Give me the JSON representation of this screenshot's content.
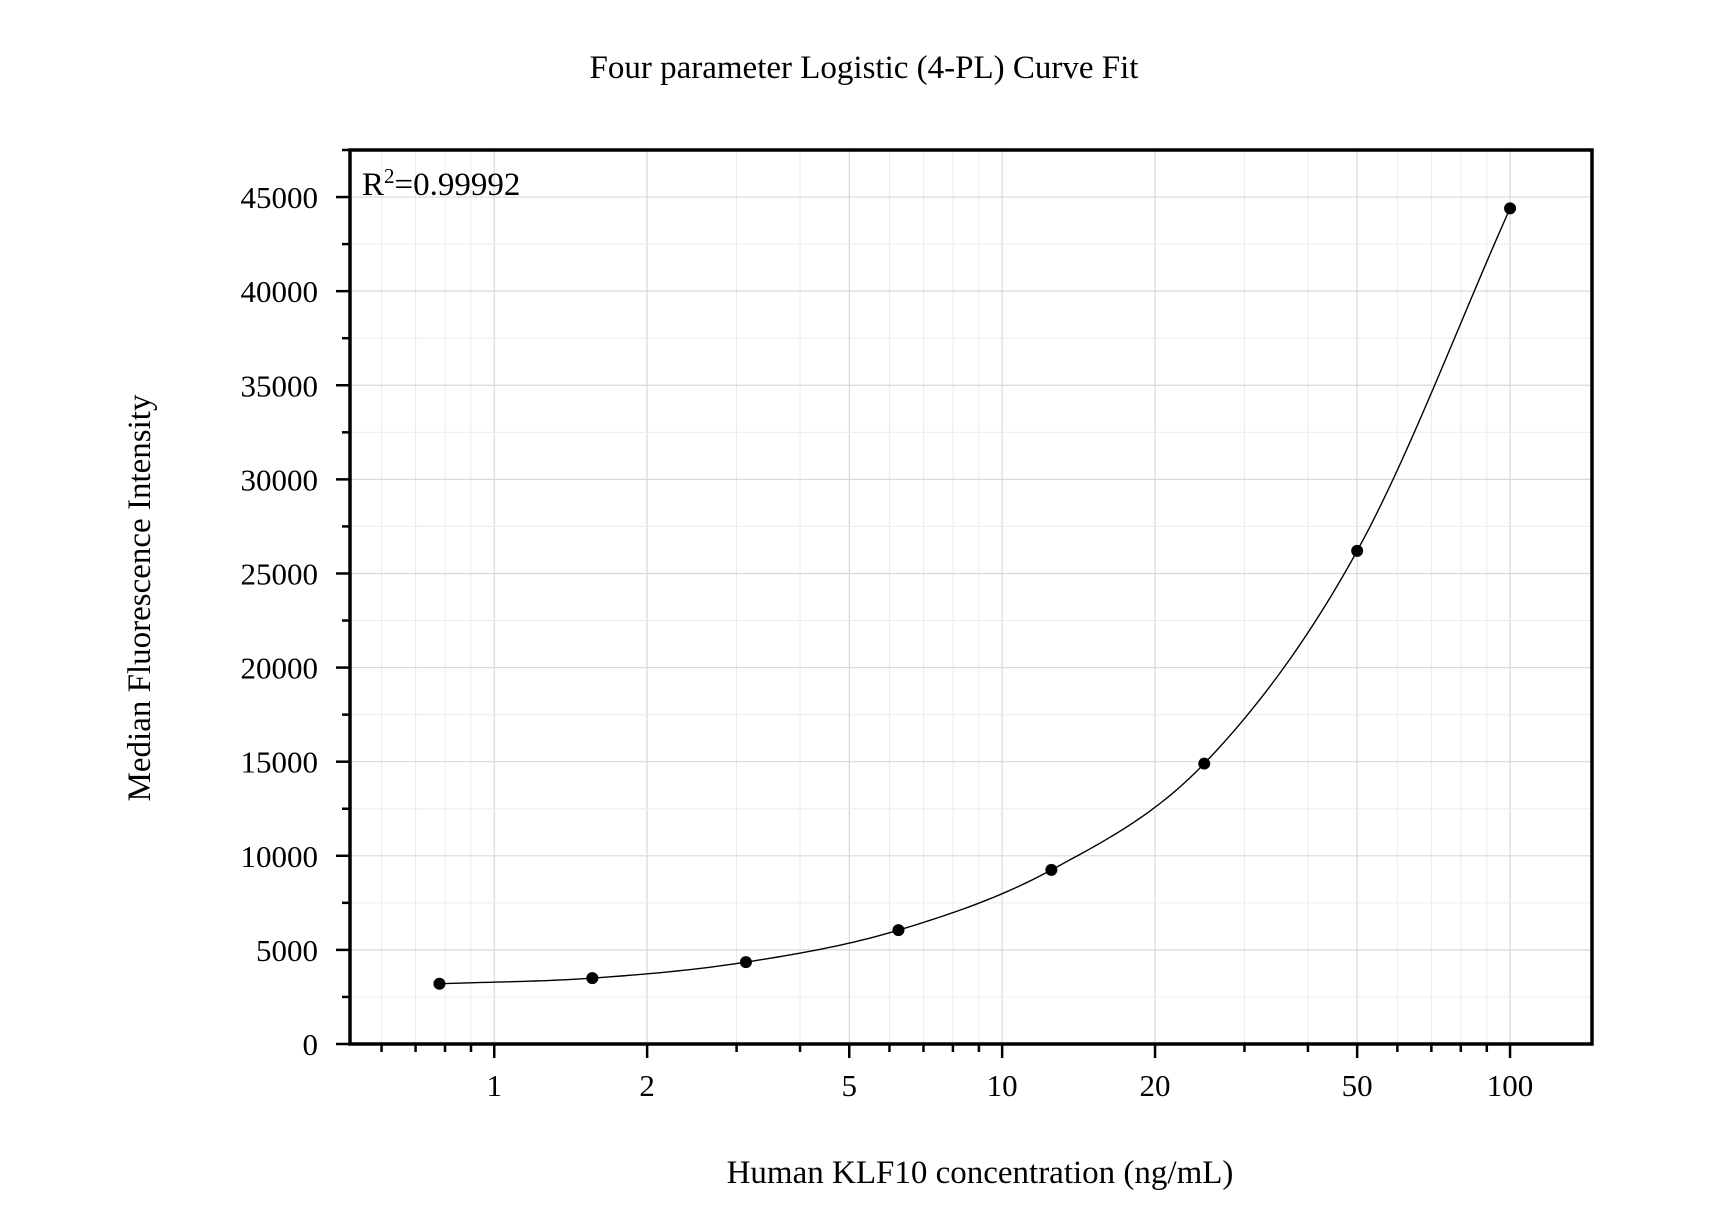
{
  "chart_data": {
    "type": "scatter",
    "title": "Four parameter Logistic (4-PL) Curve Fit",
    "xlabel": "Human KLF10 concentration (ng/mL)",
    "ylabel": "Median Fluorescence Intensity",
    "x_scale": "log10",
    "xlim": [
      0.52,
      145
    ],
    "ylim": [
      0,
      47500
    ],
    "x_ticks": [
      1,
      2,
      5,
      10,
      20,
      50,
      100
    ],
    "x_tick_labels": [
      "1",
      "2",
      "5",
      "10",
      "20",
      "50",
      "100"
    ],
    "y_ticks": [
      0,
      5000,
      10000,
      15000,
      20000,
      25000,
      30000,
      35000,
      40000,
      45000
    ],
    "y_tick_labels": [
      "0",
      "5000",
      "10000",
      "15000",
      "20000",
      "25000",
      "30000",
      "35000",
      "40000",
      "45000"
    ],
    "grid": true,
    "annotation": {
      "base": "R",
      "superscript": "2",
      "rest": "=0.99992"
    },
    "series": [
      {
        "x": [
          0.78,
          1.56,
          3.13,
          6.25,
          12.5,
          25,
          50,
          100
        ],
        "y": [
          3200,
          3500,
          4350,
          6050,
          9250,
          14900,
          26200,
          44400
        ]
      }
    ],
    "fit": {
      "model": "4-PL",
      "x": [
        0.78,
        1.56,
        3.13,
        6.25,
        12.5,
        25,
        50,
        100
      ],
      "y": [
        3200,
        3500,
        4350,
        6050,
        9250,
        14900,
        26200,
        44400
      ]
    }
  }
}
